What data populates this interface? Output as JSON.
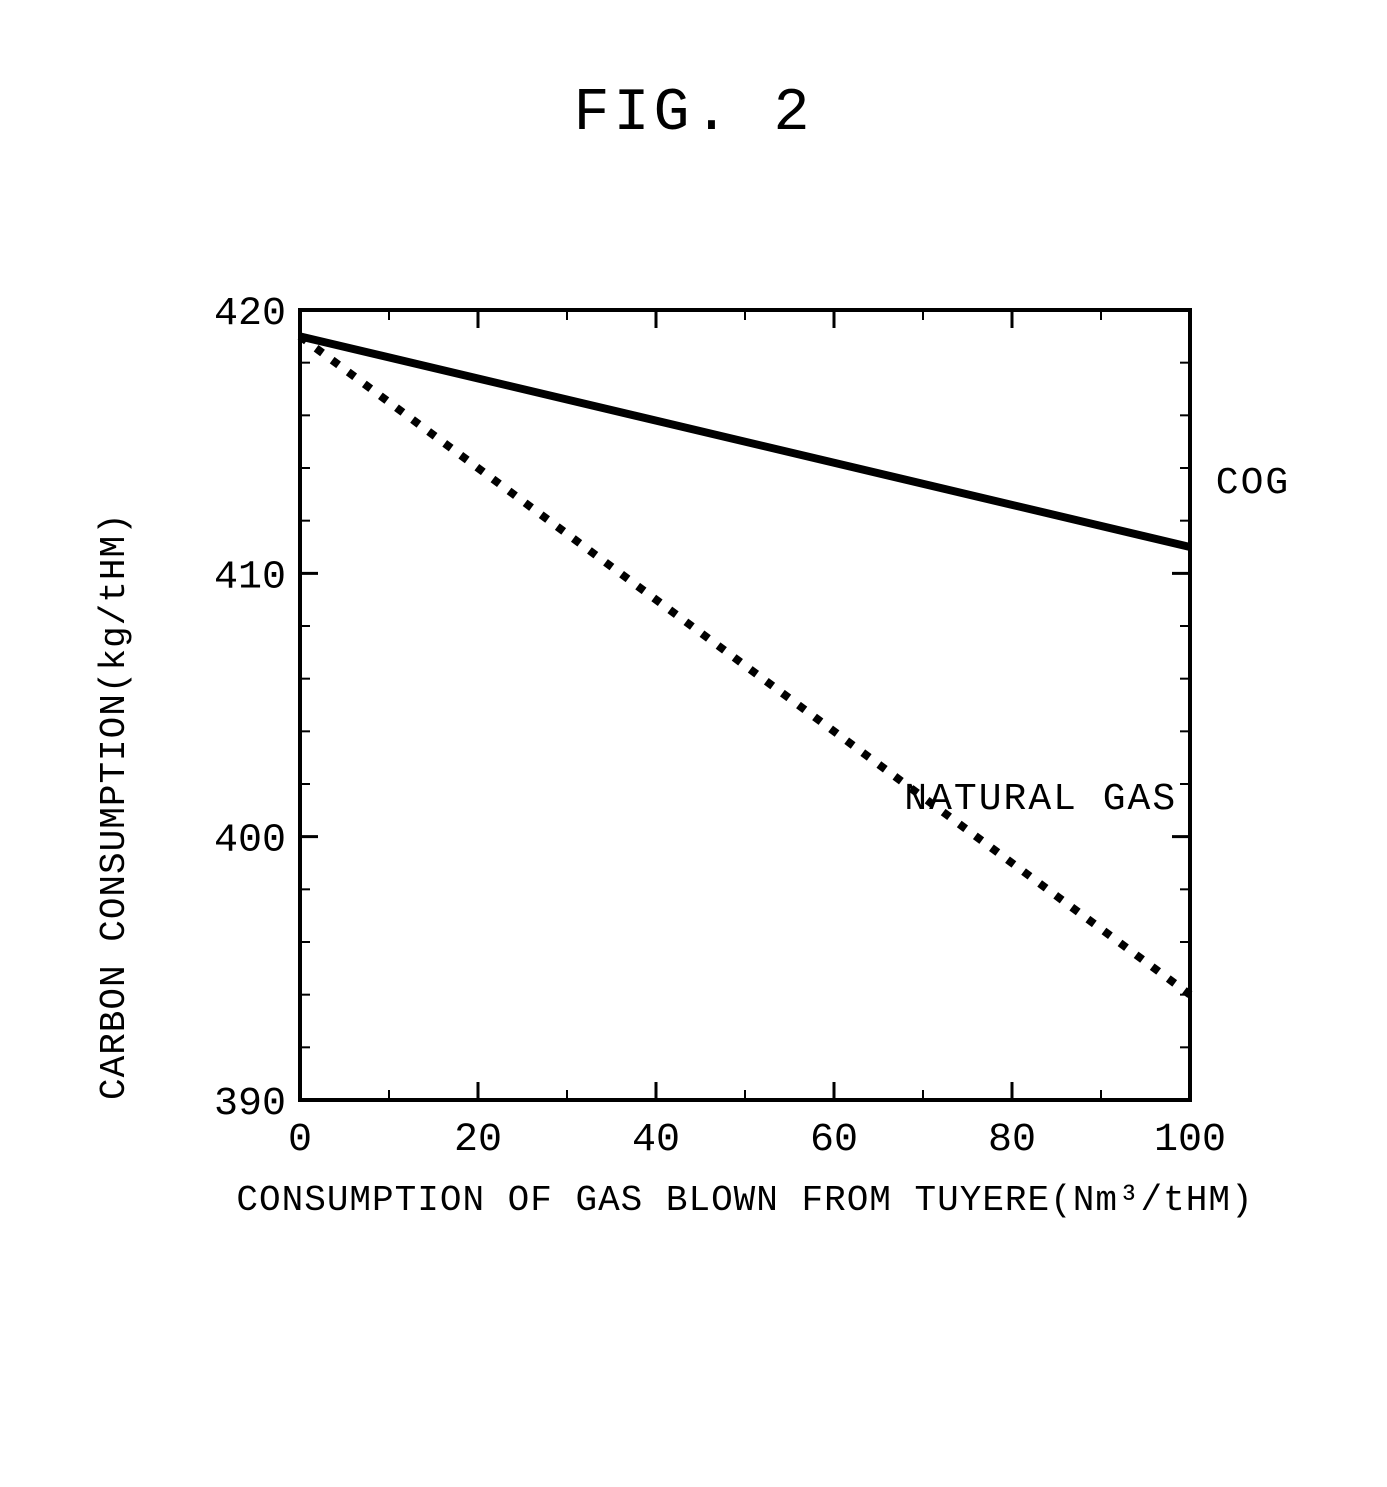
{
  "figure_title": "FIG. 2",
  "chart": {
    "type": "line",
    "background_color": "#ffffff",
    "axis_color": "#000000",
    "axis_line_width": 4,
    "xlabel": "CONSUMPTION OF GAS BLOWN FROM TUYERE(Nm³/tHM)",
    "ylabel": "CARBON CONSUMPTION(kg/tHM)",
    "label_fontsize": 36,
    "tick_fontsize": 40,
    "xlim": [
      0,
      100
    ],
    "ylim": [
      390,
      420
    ],
    "xticks": [
      0,
      20,
      40,
      60,
      80,
      100
    ],
    "yticks": [
      390,
      400,
      410,
      420
    ],
    "tick_length_major": 18,
    "tick_length_minor": 10,
    "x_minor_step": 10,
    "y_minor_step": 2,
    "series": [
      {
        "name": "COG",
        "label": "COG",
        "x": [
          0,
          100
        ],
        "y": [
          419,
          411
        ],
        "color": "#000000",
        "line_width": 8,
        "dash": "solid",
        "label_pos": {
          "x": 102,
          "y": 413.5,
          "anchor": "left"
        }
      },
      {
        "name": "NATURAL GAS",
        "label": "NATURAL GAS",
        "x": [
          0,
          100
        ],
        "y": [
          419,
          394
        ],
        "color": "#000000",
        "line_width": 8,
        "dash": "8 12",
        "label_pos": {
          "x": 67,
          "y": 401.5,
          "anchor": "left"
        }
      }
    ]
  }
}
